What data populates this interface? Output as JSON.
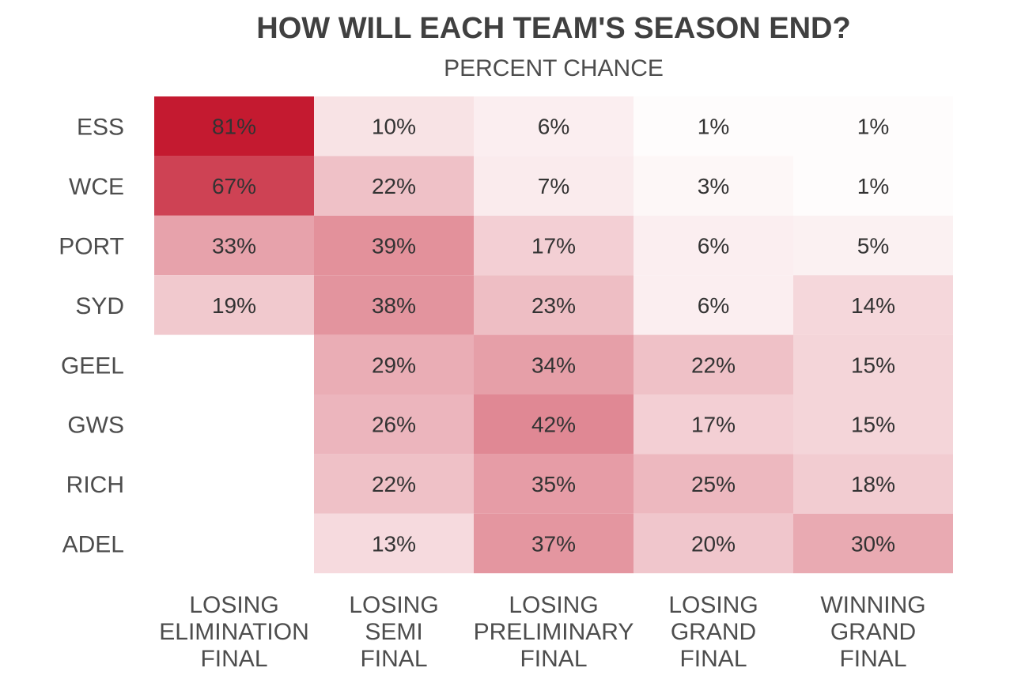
{
  "chart_data": {
    "type": "heatmap",
    "title": "HOW WILL EACH TEAM'S SEASON END?",
    "subtitle": "PERCENT CHANCE",
    "rows": [
      "ESS",
      "WCE",
      "PORT",
      "SYD",
      "GEEL",
      "GWS",
      "RICH",
      "ADEL"
    ],
    "columns": [
      [
        "LOSING",
        "ELIMINATION",
        "FINAL"
      ],
      [
        "LOSING",
        "SEMI",
        "FINAL"
      ],
      [
        "LOSING",
        "PRELIMINARY",
        "FINAL"
      ],
      [
        "LOSING",
        "GRAND",
        "FINAL"
      ],
      [
        "WINNING",
        "GRAND",
        "FINAL"
      ]
    ],
    "values": [
      [
        81,
        10,
        6,
        1,
        1
      ],
      [
        67,
        22,
        7,
        3,
        1
      ],
      [
        33,
        39,
        17,
        6,
        5
      ],
      [
        19,
        38,
        23,
        6,
        14
      ],
      [
        null,
        29,
        34,
        22,
        15
      ],
      [
        null,
        26,
        42,
        17,
        15
      ],
      [
        null,
        22,
        35,
        25,
        18
      ],
      [
        null,
        13,
        37,
        20,
        30
      ]
    ],
    "cell_labels": [
      [
        "81%",
        "10%",
        "6%",
        "1%",
        "1%"
      ],
      [
        "67%",
        "22%",
        "7%",
        "3%",
        "1%"
      ],
      [
        "33%",
        "39%",
        "17%",
        "6%",
        "5%"
      ],
      [
        "19%",
        "38%",
        "23%",
        "6%",
        "14%"
      ],
      [
        null,
        "29%",
        "34%",
        "22%",
        "15%"
      ],
      [
        null,
        "26%",
        "42%",
        "17%",
        "15%"
      ],
      [
        null,
        "22%",
        "35%",
        "25%",
        "18%"
      ],
      [
        null,
        "13%",
        "37%",
        "20%",
        "30%"
      ]
    ],
    "color_low": "#ffffff",
    "color_high": "#c41a30",
    "value_range": [
      0,
      81
    ]
  }
}
